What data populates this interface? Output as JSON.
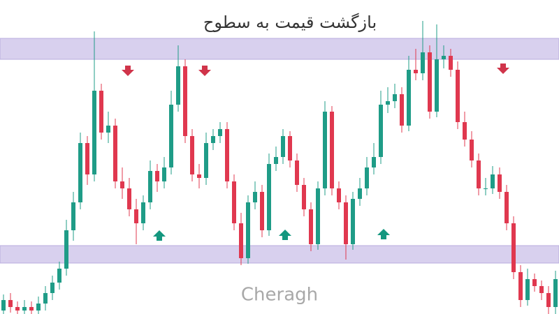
{
  "chart_data": {
    "type": "candlestick",
    "title": "بازگشت قیمت به سطوح",
    "watermark": "Cheragh",
    "ylim": [
      0,
      450
    ],
    "up_color": "#1f9c87",
    "down_color": "#e0384f",
    "zone_color": "#d8d0ee",
    "zones": [
      {
        "low": 365,
        "high": 395
      },
      {
        "low": 73,
        "high": 98
      }
    ],
    "open": [
      5,
      20,
      10,
      5,
      10,
      5,
      15,
      30,
      45,
      65,
      120,
      160,
      245,
      200,
      320,
      260,
      270,
      190,
      180,
      150,
      130,
      160,
      205,
      190,
      210,
      300,
      355,
      255,
      200,
      195,
      245,
      255,
      265,
      190,
      130,
      80,
      160,
      175,
      120,
      215,
      225,
      255,
      220,
      185,
      150,
      100,
      180,
      290,
      180,
      160,
      100,
      165,
      180,
      210,
      225,
      300,
      305,
      315,
      270,
      350,
      345,
      375,
      290,
      365,
      370,
      350,
      275,
      250,
      220,
      180,
      180,
      200,
      175,
      130,
      60,
      20,
      50,
      40,
      30,
      10
    ],
    "high": [
      28,
      30,
      18,
      20,
      18,
      25,
      40,
      55,
      75,
      135,
      175,
      260,
      255,
      405,
      330,
      290,
      280,
      210,
      195,
      165,
      170,
      220,
      215,
      225,
      320,
      385,
      365,
      265,
      215,
      260,
      265,
      275,
      275,
      200,
      145,
      170,
      190,
      185,
      230,
      240,
      265,
      262,
      230,
      195,
      160,
      190,
      305,
      298,
      190,
      170,
      175,
      195,
      225,
      245,
      320,
      325,
      330,
      325,
      370,
      380,
      420,
      385,
      415,
      385,
      380,
      362,
      290,
      262,
      230,
      195,
      212,
      210,
      185,
      140,
      70,
      65,
      58,
      48,
      40,
      62
    ],
    "low": [
      0,
      2,
      0,
      0,
      0,
      0,
      5,
      20,
      35,
      55,
      105,
      150,
      185,
      190,
      250,
      245,
      180,
      165,
      140,
      100,
      120,
      150,
      175,
      180,
      200,
      290,
      245,
      190,
      180,
      185,
      235,
      245,
      180,
      120,
      70,
      72,
      150,
      110,
      112,
      205,
      215,
      210,
      175,
      140,
      90,
      92,
      170,
      170,
      150,
      78,
      92,
      155,
      170,
      200,
      215,
      288,
      295,
      260,
      262,
      335,
      335,
      280,
      282,
      352,
      340,
      265,
      240,
      210,
      170,
      170,
      172,
      165,
      120,
      50,
      10,
      12,
      32,
      20,
      0,
      0
    ],
    "close": [
      20,
      10,
      5,
      10,
      5,
      15,
      30,
      45,
      65,
      120,
      160,
      245,
      200,
      320,
      260,
      270,
      190,
      180,
      150,
      130,
      160,
      205,
      190,
      210,
      300,
      355,
      255,
      200,
      195,
      245,
      255,
      265,
      190,
      130,
      80,
      160,
      175,
      120,
      215,
      225,
      255,
      220,
      185,
      150,
      100,
      180,
      290,
      180,
      160,
      100,
      165,
      180,
      210,
      225,
      300,
      305,
      315,
      270,
      350,
      345,
      375,
      290,
      365,
      370,
      350,
      275,
      250,
      220,
      180,
      180,
      200,
      175,
      130,
      60,
      20,
      50,
      40,
      30,
      10,
      50
    ]
  }
}
